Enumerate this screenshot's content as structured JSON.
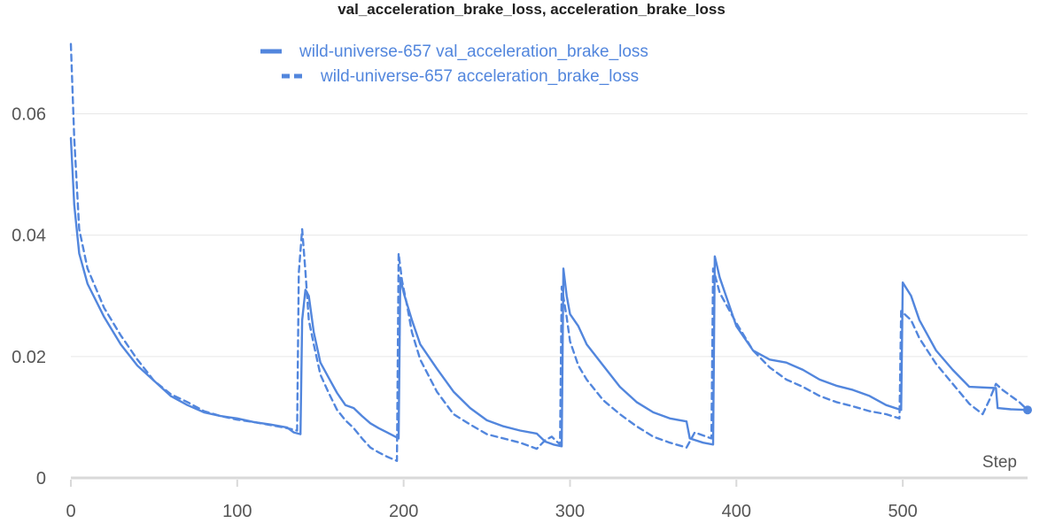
{
  "chart_data": {
    "type": "line",
    "title": "val_acceleration_brake_loss, acceleration_brake_loss",
    "xlabel": "Step",
    "ylabel": "",
    "xlim": [
      0,
      575
    ],
    "ylim": [
      0,
      0.07
    ],
    "x_ticks": [
      0,
      100,
      200,
      300,
      400,
      500
    ],
    "y_ticks": [
      0,
      0.02,
      0.04,
      0.06
    ],
    "x_tick_labels": [
      "0",
      "100",
      "200",
      "300",
      "400",
      "500"
    ],
    "y_tick_labels": [
      "0",
      "0.02",
      "0.04",
      "0.06"
    ],
    "grid": true,
    "legend_position": "top-center",
    "color": "#5286dd",
    "series": [
      {
        "name": "wild-universe-657 val_acceleration_brake_loss",
        "style": "solid",
        "points": [
          [
            0,
            0.056
          ],
          [
            2,
            0.045
          ],
          [
            5,
            0.037
          ],
          [
            10,
            0.032
          ],
          [
            20,
            0.0265
          ],
          [
            30,
            0.022
          ],
          [
            40,
            0.0185
          ],
          [
            50,
            0.016
          ],
          [
            60,
            0.0135
          ],
          [
            70,
            0.012
          ],
          [
            80,
            0.0108
          ],
          [
            90,
            0.0102
          ],
          [
            100,
            0.0098
          ],
          [
            110,
            0.0092
          ],
          [
            120,
            0.0088
          ],
          [
            130,
            0.0083
          ],
          [
            134,
            0.0075
          ],
          [
            138,
            0.0072
          ],
          [
            139,
            0.026
          ],
          [
            141,
            0.031
          ],
          [
            143,
            0.03
          ],
          [
            146,
            0.024
          ],
          [
            150,
            0.019
          ],
          [
            155,
            0.0165
          ],
          [
            160,
            0.014
          ],
          [
            165,
            0.012
          ],
          [
            170,
            0.0115
          ],
          [
            175,
            0.0102
          ],
          [
            180,
            0.009
          ],
          [
            185,
            0.0082
          ],
          [
            190,
            0.0075
          ],
          [
            195,
            0.0068
          ],
          [
            197,
            0.0065
          ],
          [
            198,
            0.033
          ],
          [
            200,
            0.0305
          ],
          [
            205,
            0.026
          ],
          [
            210,
            0.022
          ],
          [
            220,
            0.018
          ],
          [
            230,
            0.0142
          ],
          [
            240,
            0.0115
          ],
          [
            250,
            0.0095
          ],
          [
            260,
            0.0085
          ],
          [
            270,
            0.0078
          ],
          [
            280,
            0.0073
          ],
          [
            285,
            0.006
          ],
          [
            290,
            0.0055
          ],
          [
            295,
            0.0052
          ],
          [
            296,
            0.0345
          ],
          [
            298,
            0.03
          ],
          [
            300,
            0.027
          ],
          [
            305,
            0.025
          ],
          [
            310,
            0.022
          ],
          [
            320,
            0.0185
          ],
          [
            330,
            0.015
          ],
          [
            340,
            0.0125
          ],
          [
            350,
            0.0108
          ],
          [
            360,
            0.0098
          ],
          [
            370,
            0.0093
          ],
          [
            372,
            0.0065
          ],
          [
            380,
            0.0058
          ],
          [
            386,
            0.0055
          ],
          [
            387,
            0.0365
          ],
          [
            390,
            0.033
          ],
          [
            395,
            0.029
          ],
          [
            400,
            0.025
          ],
          [
            410,
            0.021
          ],
          [
            420,
            0.0195
          ],
          [
            430,
            0.019
          ],
          [
            440,
            0.0178
          ],
          [
            450,
            0.0162
          ],
          [
            460,
            0.0152
          ],
          [
            470,
            0.0145
          ],
          [
            480,
            0.0135
          ],
          [
            490,
            0.012
          ],
          [
            499,
            0.0112
          ],
          [
            500,
            0.0322
          ],
          [
            505,
            0.03
          ],
          [
            510,
            0.026
          ],
          [
            520,
            0.021
          ],
          [
            530,
            0.0178
          ],
          [
            540,
            0.015
          ],
          [
            556,
            0.0148
          ],
          [
            557,
            0.0115
          ],
          [
            565,
            0.0113
          ],
          [
            575,
            0.0112
          ]
        ]
      },
      {
        "name": "wild-universe-657 acceleration_brake_loss",
        "style": "dashed",
        "points": [
          [
            0,
            0.0715
          ],
          [
            2,
            0.056
          ],
          [
            5,
            0.041
          ],
          [
            10,
            0.0345
          ],
          [
            20,
            0.028
          ],
          [
            30,
            0.0235
          ],
          [
            40,
            0.0195
          ],
          [
            50,
            0.016
          ],
          [
            60,
            0.0138
          ],
          [
            70,
            0.0125
          ],
          [
            80,
            0.011
          ],
          [
            90,
            0.0102
          ],
          [
            100,
            0.0096
          ],
          [
            110,
            0.0092
          ],
          [
            120,
            0.0087
          ],
          [
            130,
            0.0082
          ],
          [
            136,
            0.0078
          ],
          [
            137,
            0.0338
          ],
          [
            139,
            0.041
          ],
          [
            141,
            0.034
          ],
          [
            143,
            0.026
          ],
          [
            146,
            0.022
          ],
          [
            150,
            0.017
          ],
          [
            155,
            0.014
          ],
          [
            160,
            0.0112
          ],
          [
            165,
            0.0095
          ],
          [
            170,
            0.0082
          ],
          [
            175,
            0.0065
          ],
          [
            180,
            0.005
          ],
          [
            185,
            0.0042
          ],
          [
            190,
            0.0035
          ],
          [
            196,
            0.0028
          ],
          [
            197,
            0.037
          ],
          [
            199,
            0.0325
          ],
          [
            202,
            0.0285
          ],
          [
            205,
            0.024
          ],
          [
            210,
            0.0195
          ],
          [
            220,
            0.0142
          ],
          [
            230,
            0.0105
          ],
          [
            240,
            0.0088
          ],
          [
            250,
            0.0072
          ],
          [
            260,
            0.0065
          ],
          [
            270,
            0.0058
          ],
          [
            280,
            0.0048
          ],
          [
            285,
            0.0062
          ],
          [
            289,
            0.0068
          ],
          [
            294,
            0.0055
          ],
          [
            295,
            0.0315
          ],
          [
            298,
            0.0265
          ],
          [
            300,
            0.0225
          ],
          [
            305,
            0.0185
          ],
          [
            310,
            0.0162
          ],
          [
            320,
            0.0128
          ],
          [
            330,
            0.0105
          ],
          [
            340,
            0.0085
          ],
          [
            350,
            0.0068
          ],
          [
            360,
            0.0058
          ],
          [
            370,
            0.005
          ],
          [
            375,
            0.0075
          ],
          [
            385,
            0.0065
          ],
          [
            386,
            0.0345
          ],
          [
            390,
            0.0305
          ],
          [
            395,
            0.028
          ],
          [
            400,
            0.0255
          ],
          [
            410,
            0.021
          ],
          [
            420,
            0.0182
          ],
          [
            430,
            0.0162
          ],
          [
            440,
            0.015
          ],
          [
            450,
            0.0135
          ],
          [
            460,
            0.0125
          ],
          [
            470,
            0.0118
          ],
          [
            480,
            0.011
          ],
          [
            490,
            0.0105
          ],
          [
            498,
            0.0098
          ],
          [
            499,
            0.0275
          ],
          [
            505,
            0.026
          ],
          [
            510,
            0.023
          ],
          [
            520,
            0.0188
          ],
          [
            530,
            0.0155
          ],
          [
            540,
            0.0122
          ],
          [
            548,
            0.0105
          ],
          [
            552,
            0.0128
          ],
          [
            556,
            0.0155
          ],
          [
            560,
            0.0145
          ],
          [
            570,
            0.0125
          ],
          [
            575,
            0.0112
          ]
        ]
      }
    ]
  }
}
